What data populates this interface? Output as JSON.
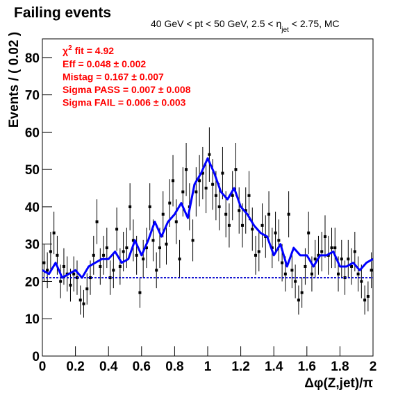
{
  "chart_data": {
    "type": "scatter",
    "title": "Failing events",
    "subtitle": {
      "before": "40 GeV < pt < 50 GeV, 2.5 < η",
      "sub": "jet",
      "after": "< 2.75, MC"
    },
    "annotations": {
      "chi2": {
        "symbol": "χ",
        "sup": "2",
        "text": "fit = 4.92"
      },
      "lines": [
        "Eff = 0.048 ± 0.002",
        "Mistag = 0.167 ± 0.007",
        "Sigma PASS = 0.007 ± 0.008",
        "Sigma FAIL = 0.006 ± 0.003"
      ],
      "color": "#ff0000"
    },
    "xlabel": "Δφ(Z,jet)/π",
    "ylabel": "Events / ( 0.02 )",
    "xlim": [
      0,
      2
    ],
    "ylim": [
      0,
      85
    ],
    "xticks": [
      0,
      0.2,
      0.4,
      0.6,
      0.8,
      1,
      1.2,
      1.4,
      1.6,
      1.8,
      2
    ],
    "yticks": [
      0,
      10,
      20,
      30,
      40,
      50,
      60,
      70,
      80
    ],
    "series": [
      {
        "color": "#000000",
        "marker": "square",
        "x": [
          0.01,
          0.03,
          0.05,
          0.07,
          0.09,
          0.11,
          0.13,
          0.15,
          0.17,
          0.19,
          0.21,
          0.23,
          0.25,
          0.27,
          0.29,
          0.31,
          0.33,
          0.35,
          0.37,
          0.39,
          0.41,
          0.43,
          0.45,
          0.47,
          0.49,
          0.51,
          0.53,
          0.55,
          0.57,
          0.59,
          0.61,
          0.63,
          0.65,
          0.67,
          0.69,
          0.71,
          0.73,
          0.75,
          0.77,
          0.79,
          0.81,
          0.83,
          0.85,
          0.87,
          0.89,
          0.91,
          0.93,
          0.95,
          0.97,
          0.99,
          1.01,
          1.03,
          1.05,
          1.07,
          1.09,
          1.11,
          1.13,
          1.15,
          1.17,
          1.19,
          1.21,
          1.23,
          1.25,
          1.27,
          1.29,
          1.31,
          1.33,
          1.35,
          1.37,
          1.39,
          1.41,
          1.43,
          1.45,
          1.47,
          1.49,
          1.51,
          1.53,
          1.55,
          1.57,
          1.59,
          1.61,
          1.63,
          1.65,
          1.67,
          1.69,
          1.71,
          1.73,
          1.75,
          1.77,
          1.79,
          1.81,
          1.83,
          1.85,
          1.87,
          1.89,
          1.91,
          1.93,
          1.95,
          1.97,
          1.99
        ],
        "values": [
          25,
          23,
          28,
          33,
          27,
          20,
          24,
          22,
          19,
          22,
          21,
          15,
          14,
          18,
          21,
          27,
          36,
          24,
          27,
          29,
          21,
          23,
          34,
          24,
          28,
          29,
          40,
          31,
          27,
          17,
          26,
          29,
          40,
          31,
          23,
          29,
          38,
          30,
          41,
          47,
          36,
          26,
          44,
          50,
          40,
          31,
          44,
          47,
          49,
          45,
          54,
          46,
          43,
          40,
          49,
          38,
          35,
          43,
          50,
          39,
          35,
          39,
          43,
          34,
          27,
          28,
          35,
          32,
          38,
          29,
          33,
          31,
          25,
          22,
          38,
          23,
          20,
          15,
          17,
          24,
          33,
          22,
          26,
          27,
          28,
          32,
          27,
          29,
          29,
          22,
          26,
          21,
          26,
          24,
          28,
          22,
          20,
          15,
          16,
          23
        ],
        "errors": [
          5.0,
          4.8,
          5.3,
          5.7,
          5.2,
          4.5,
          4.9,
          4.7,
          4.4,
          4.7,
          4.6,
          3.9,
          3.7,
          4.2,
          4.6,
          5.2,
          6.0,
          4.9,
          5.2,
          5.4,
          4.6,
          4.8,
          5.8,
          4.9,
          5.3,
          5.4,
          6.3,
          5.6,
          5.2,
          4.1,
          5.1,
          5.4,
          6.3,
          5.6,
          4.8,
          5.4,
          6.2,
          5.5,
          6.4,
          6.9,
          6.0,
          5.1,
          6.6,
          7.1,
          6.3,
          5.6,
          6.6,
          6.9,
          7.0,
          6.7,
          7.3,
          6.8,
          6.6,
          6.3,
          7.0,
          6.2,
          5.9,
          6.6,
          7.1,
          6.2,
          5.9,
          6.2,
          6.6,
          5.8,
          5.2,
          5.3,
          5.9,
          5.7,
          6.2,
          5.4,
          5.7,
          5.6,
          5.0,
          4.7,
          6.2,
          4.8,
          4.5,
          3.9,
          4.1,
          4.9,
          5.7,
          4.7,
          5.1,
          5.2,
          5.3,
          5.7,
          5.2,
          5.4,
          5.4,
          4.7,
          5.1,
          4.6,
          5.1,
          4.9,
          5.3,
          4.7,
          4.5,
          3.9,
          4.0,
          4.8
        ]
      },
      {
        "color": "#0000ff",
        "line": "solid",
        "x": [
          0,
          0.04,
          0.08,
          0.12,
          0.16,
          0.2,
          0.24,
          0.28,
          0.32,
          0.36,
          0.4,
          0.44,
          0.48,
          0.52,
          0.56,
          0.6,
          0.64,
          0.68,
          0.72,
          0.76,
          0.8,
          0.84,
          0.88,
          0.92,
          0.96,
          1,
          1.04,
          1.08,
          1.12,
          1.16,
          1.2,
          1.24,
          1.28,
          1.32,
          1.36,
          1.4,
          1.44,
          1.48,
          1.52,
          1.56,
          1.6,
          1.64,
          1.68,
          1.72,
          1.76,
          1.8,
          1.84,
          1.88,
          1.92,
          1.96,
          2
        ],
        "values": [
          23,
          22,
          25,
          21,
          22,
          23,
          21,
          24,
          25,
          26,
          26,
          28,
          25,
          26,
          31,
          27,
          31,
          36,
          32,
          36,
          38,
          41,
          37,
          46,
          49,
          53,
          49,
          44,
          42,
          45,
          40,
          38,
          35,
          33,
          32,
          27,
          30,
          24,
          29,
          27,
          27,
          24,
          27,
          27,
          28,
          24,
          24,
          25,
          23,
          25,
          26
        ]
      },
      {
        "color": "#0000cc",
        "line": "dotted",
        "x": [
          0,
          2
        ],
        "values": [
          21,
          21
        ]
      }
    ]
  }
}
